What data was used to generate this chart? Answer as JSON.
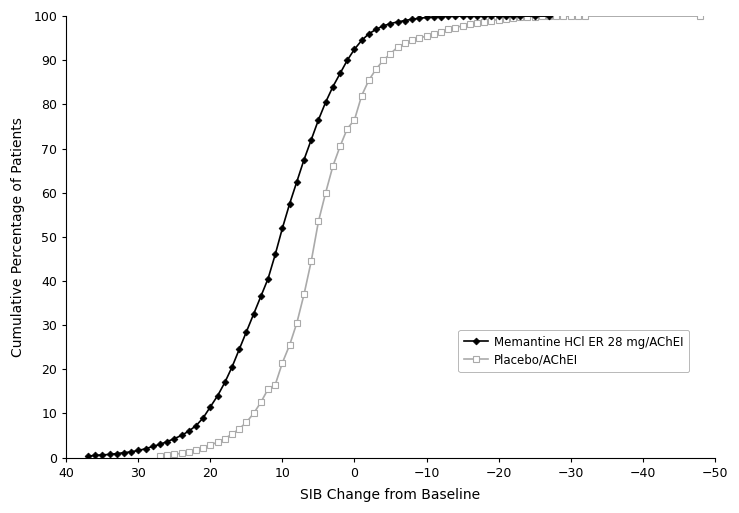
{
  "title": "",
  "xlabel": "SIB Change from Baseline",
  "ylabel": "Cumulative Percentage of Patients",
  "xlim": [
    40,
    -50
  ],
  "ylim": [
    0,
    100
  ],
  "xticks": [
    40,
    30,
    20,
    10,
    0,
    -10,
    -20,
    -30,
    -40,
    -50
  ],
  "yticks": [
    0,
    10,
    20,
    30,
    40,
    50,
    60,
    70,
    80,
    90,
    100
  ],
  "memantine_x": [
    37,
    36,
    35,
    34,
    33,
    32,
    31,
    30,
    29,
    28,
    27,
    26,
    25,
    24,
    23,
    22,
    21,
    20,
    19,
    18,
    17,
    16,
    15,
    14,
    13,
    12,
    11,
    10,
    9,
    8,
    7,
    6,
    5,
    4,
    3,
    2,
    1,
    0,
    -1,
    -2,
    -3,
    -4,
    -5,
    -6,
    -7,
    -8,
    -9,
    -10,
    -11,
    -12,
    -13,
    -14,
    -15,
    -16,
    -17,
    -18,
    -19,
    -20,
    -21,
    -22,
    -23,
    -25,
    -27
  ],
  "memantine_y": [
    0.3,
    0.5,
    0.6,
    0.7,
    0.9,
    1.1,
    1.3,
    1.6,
    2.0,
    2.5,
    3.0,
    3.6,
    4.3,
    5.0,
    6.0,
    7.2,
    9.0,
    11.5,
    14.0,
    17.0,
    20.5,
    24.5,
    28.5,
    32.5,
    36.5,
    40.5,
    46.0,
    52.0,
    57.5,
    62.5,
    67.5,
    72.0,
    76.5,
    80.5,
    84.0,
    87.0,
    90.0,
    92.5,
    94.5,
    96.0,
    97.0,
    97.8,
    98.3,
    98.7,
    99.0,
    99.3,
    99.5,
    99.7,
    99.8,
    99.9,
    100.0,
    100.0,
    100.0,
    100.0,
    100.0,
    100.0,
    100.0,
    100.0,
    100.0,
    100.0,
    100.0,
    100.0,
    100.0
  ],
  "placebo_x": [
    27,
    26,
    25,
    24,
    23,
    22,
    21,
    20,
    19,
    18,
    17,
    16,
    15,
    14,
    13,
    12,
    11,
    10,
    9,
    8,
    7,
    6,
    5,
    4,
    3,
    2,
    1,
    0,
    -1,
    -2,
    -3,
    -4,
    -5,
    -6,
    -7,
    -8,
    -9,
    -10,
    -11,
    -12,
    -13,
    -14,
    -15,
    -16,
    -17,
    -18,
    -19,
    -20,
    -21,
    -22,
    -23,
    -24,
    -25,
    -26,
    -27,
    -28,
    -29,
    -30,
    -31,
    -32,
    -48
  ],
  "placebo_y": [
    0.3,
    0.5,
    0.7,
    1.0,
    1.3,
    1.7,
    2.2,
    2.8,
    3.5,
    4.3,
    5.3,
    6.5,
    8.0,
    10.0,
    12.5,
    15.5,
    16.5,
    21.5,
    25.5,
    30.5,
    37.0,
    44.5,
    53.5,
    60.0,
    66.0,
    70.5,
    74.5,
    76.5,
    82.0,
    85.5,
    88.0,
    90.0,
    91.5,
    93.0,
    93.8,
    94.5,
    95.0,
    95.5,
    96.0,
    96.5,
    97.0,
    97.4,
    97.8,
    98.1,
    98.4,
    98.7,
    99.0,
    99.2,
    99.4,
    99.6,
    99.7,
    99.8,
    99.9,
    99.95,
    100.0,
    100.0,
    100.0,
    100.0,
    100.0,
    100.0,
    100.0
  ],
  "memantine_color": "#000000",
  "placebo_color": "#aaaaaa",
  "memantine_label": "Memantine HCl ER 28 mg/AChEI",
  "placebo_label": "Placebo/AChEI",
  "background_color": "#ffffff",
  "marker_mem": "D",
  "marker_pla": "s",
  "linewidth": 1.2,
  "markersize_mem": 3.5,
  "markersize_pla": 4.5
}
